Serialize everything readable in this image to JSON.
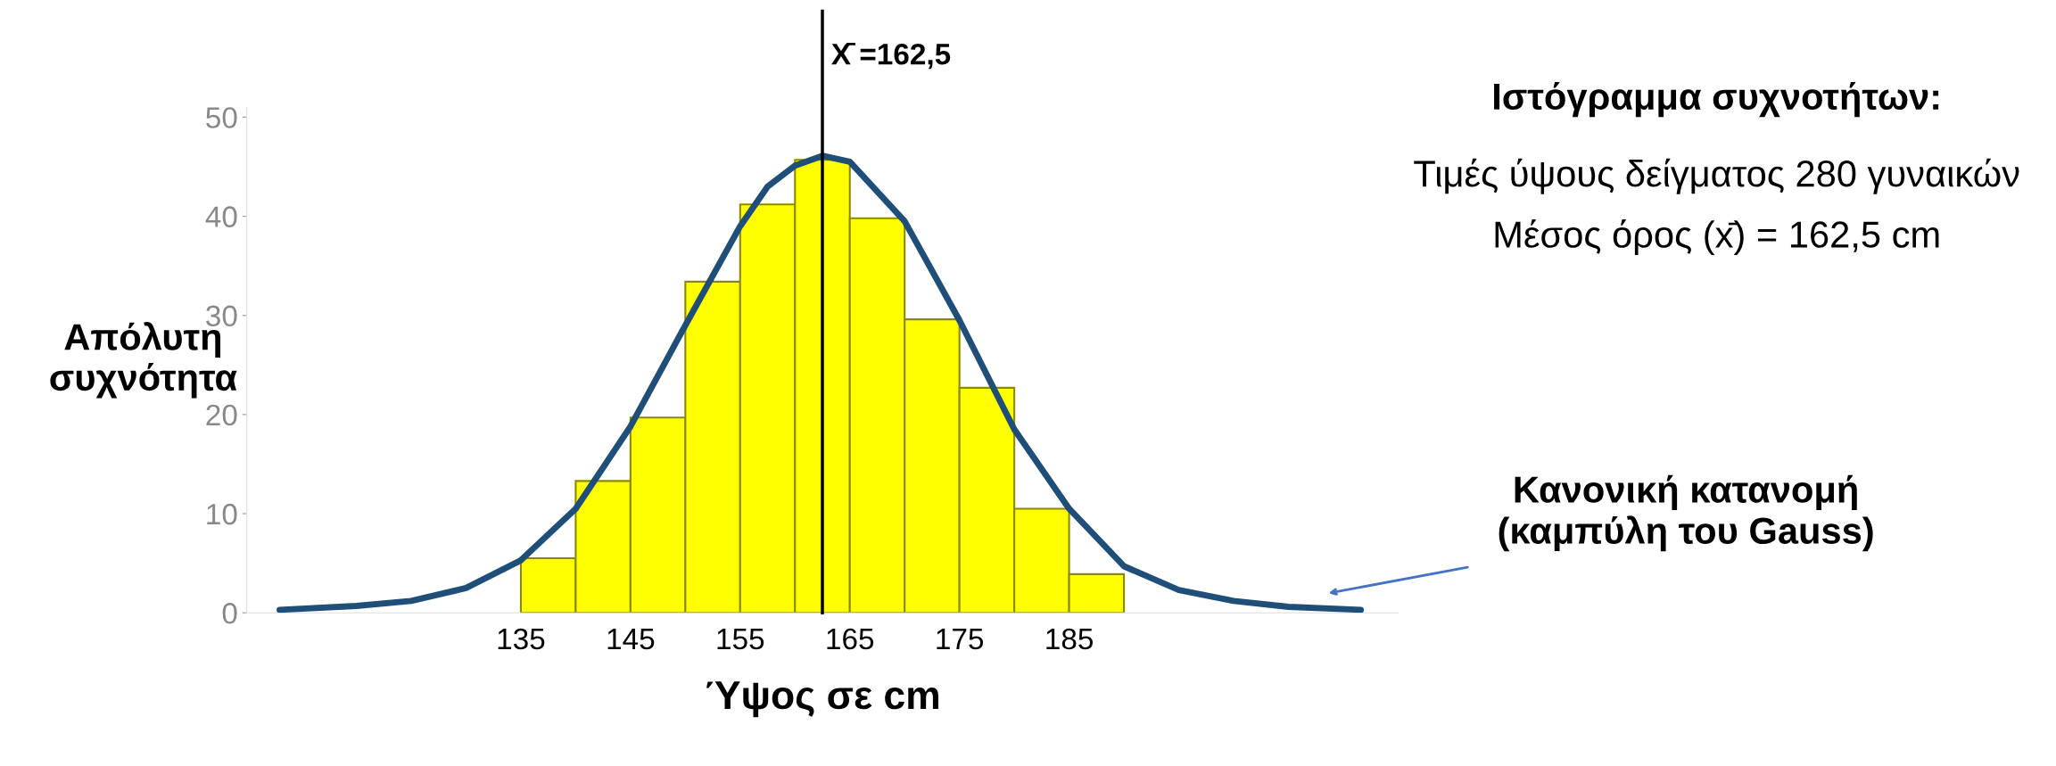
{
  "chart_data": {
    "type": "histogram",
    "title": "Ιστόγραμμα συχνοτήτων:",
    "subtitle": "Τιμές ύψους δείγματος 280 γυναικών\nΜέσος όρος (x̄) = 162,5 cm",
    "xlabel": "Ύψος σε cm",
    "ylabel": "Απόλυτη\nσυχνότητα",
    "bins": [
      135,
      140,
      145,
      150,
      155,
      160,
      165,
      170,
      175,
      180,
      185,
      190
    ],
    "values": [
      5.5,
      13.3,
      19.7,
      33.4,
      41.2,
      45.7,
      39.8,
      29.6,
      22.7,
      10.5,
      3.9
    ],
    "color": "#ffff00",
    "series": [
      {
        "type": "line",
        "color": "#1f4e79",
        "x": [
          113,
          120,
          125,
          130,
          135,
          140,
          145,
          150,
          155,
          157.5,
          160,
          162.5,
          165,
          170,
          175,
          180,
          185,
          190,
          195,
          200,
          205,
          211.6
        ],
        "values": [
          0.3,
          0.7,
          1.2,
          2.5,
          5.3,
          10.5,
          18.8,
          29,
          39,
          43,
          45.1,
          46.1,
          45.5,
          39.5,
          29.5,
          18.5,
          10.5,
          4.7,
          2.3,
          1.2,
          0.6,
          0.3
        ]
      }
    ],
    "xlim": [
      110,
      215
    ],
    "ylim": [
      0,
      51
    ],
    "xticks": [
      135,
      145,
      155,
      165,
      175,
      185
    ],
    "yticks": [
      0,
      10,
      20,
      30,
      40,
      50
    ],
    "ref_lines": [
      {
        "axis": "x",
        "value": 162.5,
        "label": "X̄ =162,5",
        "color": "#000000"
      }
    ],
    "annotations": [
      "Κανονική κατανομή\n(καμπύλη του Gauss)"
    ],
    "grid": false,
    "legend": false
  }
}
